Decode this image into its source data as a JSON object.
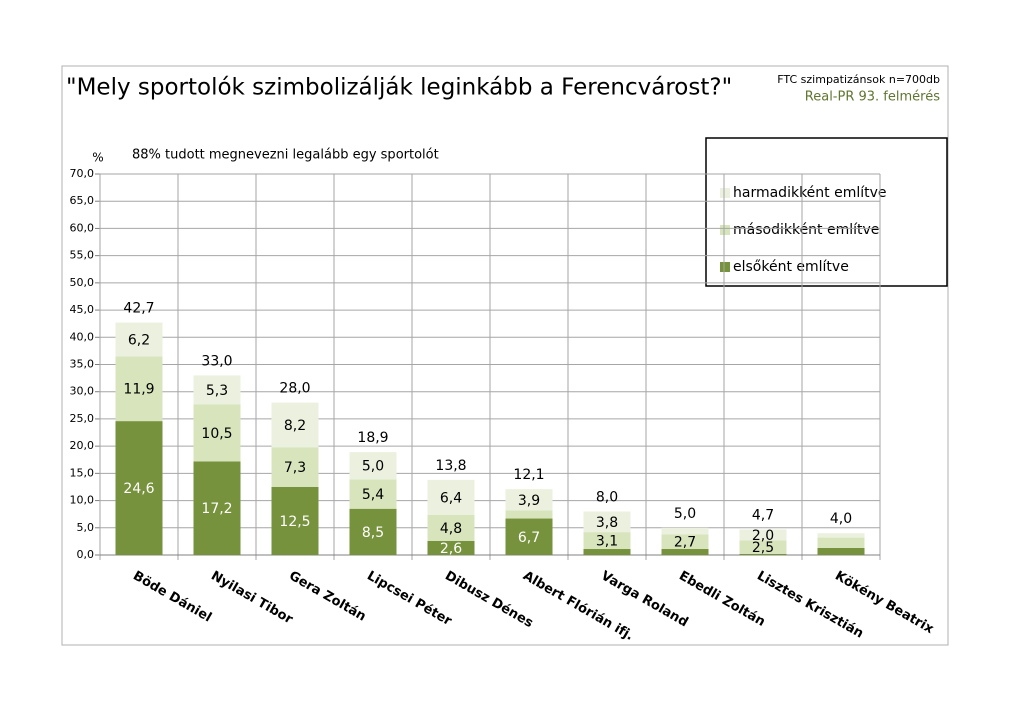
{
  "chart_data": {
    "type": "stacked-bar",
    "title": "\"Mely sportolók szimbolizálják leginkább a Ferencvárost?\"",
    "source_line1": "FTC szimpatizánsok n=700db",
    "source_line2": "Real-PR 93. felmérés",
    "y_unit": "%",
    "note": "88% tudott megnevezni legalább egy sportolót",
    "categories": [
      "Böde Dániel",
      "Nyilasi Tibor",
      "Gera Zoltán",
      "Lipcsei Péter",
      "Dibusz Dénes",
      "Albert Flórián ifj.",
      "Varga Roland",
      "Ebedli Zoltán",
      "Lisztes Krisztián",
      "Kökény Beatrix"
    ],
    "series": [
      {
        "name": "elsőként említve",
        "color": "#76923c",
        "values": [
          24.6,
          17.2,
          12.5,
          8.5,
          2.6,
          6.7,
          1.1,
          1.1,
          0.2,
          1.3
        ],
        "value_labels": [
          "24,6",
          "17,2",
          "12,5",
          "8,5",
          "2,6",
          "6,7",
          null,
          null,
          null,
          null
        ]
      },
      {
        "name": "másodikként említve",
        "color": "#d7e4bc",
        "values": [
          11.9,
          10.5,
          7.3,
          5.4,
          4.8,
          1.5,
          3.1,
          2.7,
          2.5,
          1.9
        ],
        "value_labels": [
          "11,9",
          "10,5",
          "7,3",
          "5,4",
          "4,8",
          null,
          "3,1",
          "2,7",
          "2,5",
          null
        ]
      },
      {
        "name": "harmadikként említve",
        "color": "#ebf1de",
        "values": [
          6.2,
          5.3,
          8.2,
          5.0,
          6.4,
          3.9,
          3.8,
          1.2,
          2.0,
          0.8
        ],
        "value_labels": [
          "6,2",
          "5,3",
          "8,2",
          "5,0",
          "6,4",
          "3,9",
          "3,8",
          null,
          "2,0",
          null
        ]
      }
    ],
    "totals": [
      42.7,
      33.0,
      28.0,
      18.9,
      13.8,
      12.1,
      8.0,
      5.0,
      4.7,
      4.0
    ],
    "total_labels": [
      "42,7",
      "33,0",
      "28,0",
      "18,9",
      "13,8",
      "12,1",
      "8,0",
      "5,0",
      "4,7",
      "4,0"
    ],
    "ylim": [
      0,
      70
    ],
    "yticks": [
      {
        "value": 0,
        "label": "0,0"
      },
      {
        "value": 5,
        "label": "5,0"
      },
      {
        "value": 10,
        "label": "10,0"
      },
      {
        "value": 15,
        "label": "15,0"
      },
      {
        "value": 20,
        "label": "20,0"
      },
      {
        "value": 25,
        "label": "25,0"
      },
      {
        "value": 30,
        "label": "30,0"
      },
      {
        "value": 35,
        "label": "35,0"
      },
      {
        "value": 40,
        "label": "40,0"
      },
      {
        "value": 45,
        "label": "45,0"
      },
      {
        "value": 50,
        "label": "50,0"
      },
      {
        "value": 55,
        "label": "55,0"
      },
      {
        "value": 60,
        "label": "60,0"
      },
      {
        "value": 65,
        "label": "65,0"
      },
      {
        "value": 70,
        "label": "70,0"
      }
    ],
    "grid": true,
    "legend_position": "top-right"
  }
}
